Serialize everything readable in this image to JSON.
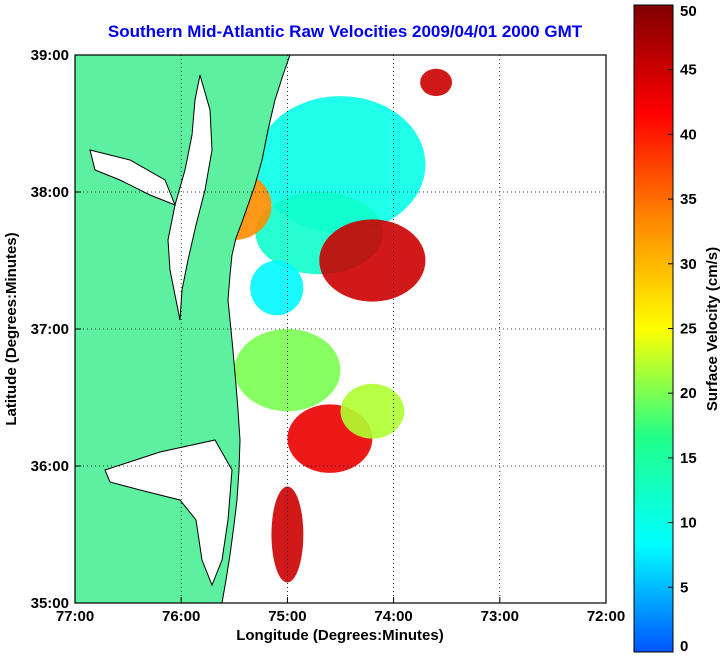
{
  "chart_data": {
    "type": "heatmap",
    "title": "Southern Mid-Atlantic Raw Velocities 2009/04/01 2000 GMT",
    "xlabel": "Longitude (Degrees:Minutes)",
    "ylabel": "Latitude (Degrees:Minutes)",
    "xlim": [
      -77,
      -72
    ],
    "ylim": [
      35,
      39
    ],
    "x_ticks": [
      {
        "value": -77,
        "label": "77:00"
      },
      {
        "value": -76,
        "label": "76:00"
      },
      {
        "value": -75,
        "label": "75:00"
      },
      {
        "value": -74,
        "label": "74:00"
      },
      {
        "value": -73,
        "label": "73:00"
      },
      {
        "value": -72,
        "label": "72:00"
      }
    ],
    "y_ticks": [
      {
        "value": 35,
        "label": "35:00"
      },
      {
        "value": 36,
        "label": "36:00"
      },
      {
        "value": 37,
        "label": "37:00"
      },
      {
        "value": 38,
        "label": "38:00"
      },
      {
        "value": 39,
        "label": "39:00"
      }
    ],
    "grid": true,
    "colorbar": {
      "label": "Surface Velocity (cm/s)",
      "range": [
        0,
        50
      ],
      "ticks": [
        {
          "value": 0,
          "label": "0"
        },
        {
          "value": 5,
          "label": "5"
        },
        {
          "value": 10,
          "label": "10"
        },
        {
          "value": 15,
          "label": "15"
        },
        {
          "value": 20,
          "label": "20"
        },
        {
          "value": 25,
          "label": "25"
        },
        {
          "value": 30,
          "label": "30"
        },
        {
          "value": 35,
          "label": "35"
        },
        {
          "value": 40,
          "label": "40"
        },
        {
          "value": 45,
          "label": "45"
        },
        {
          "value": 50,
          "label": "50"
        }
      ],
      "colormap": "jet",
      "colors": [
        "#0055ff",
        "#00ffff",
        "#22ff88",
        "#ffff00",
        "#ff8800",
        "#ff0000",
        "#800000"
      ]
    },
    "land_color": "#5cf0a0",
    "velocity_regions": [
      {
        "lon": -74.5,
        "lat": 38.2,
        "rx": 0.8,
        "ry": 0.5,
        "speed": 10
      },
      {
        "lon": -74.7,
        "lat": 37.7,
        "rx": 0.6,
        "ry": 0.3,
        "speed": 12
      },
      {
        "lon": -75.5,
        "lat": 37.9,
        "rx": 0.35,
        "ry": 0.25,
        "speed": 33
      },
      {
        "lon": -74.2,
        "lat": 37.5,
        "rx": 0.5,
        "ry": 0.3,
        "speed": 45
      },
      {
        "lon": -73.6,
        "lat": 38.8,
        "rx": 0.15,
        "ry": 0.1,
        "speed": 45
      },
      {
        "lon": -75.1,
        "lat": 37.3,
        "rx": 0.25,
        "ry": 0.2,
        "speed": 8
      },
      {
        "lon": -75.0,
        "lat": 36.7,
        "rx": 0.5,
        "ry": 0.3,
        "speed": 20
      },
      {
        "lon": -74.6,
        "lat": 36.2,
        "rx": 0.4,
        "ry": 0.25,
        "speed": 43
      },
      {
        "lon": -74.2,
        "lat": 36.4,
        "rx": 0.3,
        "ry": 0.2,
        "speed": 22
      },
      {
        "lon": -75.0,
        "lat": 35.5,
        "rx": 0.15,
        "ry": 0.35,
        "speed": 45
      }
    ]
  }
}
